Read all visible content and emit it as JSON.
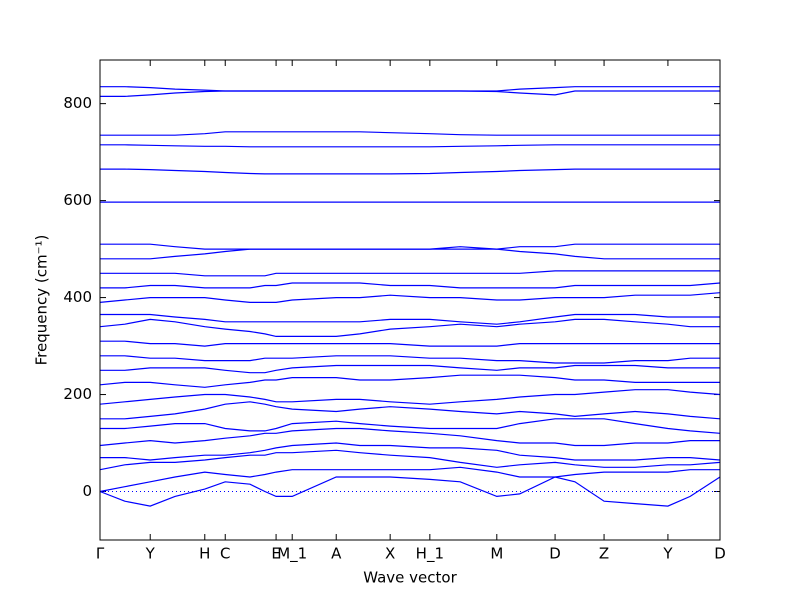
{
  "chart_data": {
    "type": "line",
    "xlabel": "Wave vector",
    "ylabel": "Frequency (cm⁻¹)",
    "color": "#0000ff",
    "xlim": [
      0,
      1
    ],
    "ylim": [
      -100,
      890
    ],
    "yticks": [
      0,
      200,
      400,
      600,
      800
    ],
    "xticks": [
      {
        "value": 0,
        "label": "Γ"
      },
      {
        "value": 0.081,
        "label": "Y"
      },
      {
        "value": 0.169,
        "label": "H"
      },
      {
        "value": 0.202,
        "label": "C"
      },
      {
        "value": 0.284,
        "label": "E"
      },
      {
        "value": 0.31,
        "label": "M_1"
      },
      {
        "value": 0.381,
        "label": "A"
      },
      {
        "value": 0.468,
        "label": "X"
      },
      {
        "value": 0.532,
        "label": "H_1"
      },
      {
        "value": 0.64,
        "label": "M"
      },
      {
        "value": 0.734,
        "label": "D"
      },
      {
        "value": 0.813,
        "label": "Z"
      },
      {
        "value": 0.916,
        "label": "Y"
      },
      {
        "value": 1,
        "label": "D"
      }
    ],
    "reference_line": 0,
    "x": [
      0,
      0.04,
      0.081,
      0.121,
      0.169,
      0.202,
      0.242,
      0.266,
      0.284,
      0.31,
      0.381,
      0.419,
      0.468,
      0.532,
      0.581,
      0.64,
      0.677,
      0.734,
      0.766,
      0.813,
      0.863,
      0.916,
      0.952,
      1
    ],
    "series": [
      {
        "values": [
          0,
          -20,
          -30,
          -10,
          5,
          20,
          15,
          0,
          -10,
          -10,
          30,
          30,
          30,
          25,
          20,
          -10,
          -5,
          30,
          20,
          -20,
          -25,
          -30,
          -10,
          30
        ]
      },
      {
        "values": [
          0,
          10,
          20,
          30,
          40,
          35,
          30,
          35,
          40,
          45,
          45,
          45,
          45,
          45,
          50,
          40,
          30,
          30,
          35,
          40,
          40,
          40,
          45,
          45
        ]
      },
      {
        "values": [
          45,
          55,
          60,
          60,
          65,
          70,
          75,
          75,
          80,
          80,
          85,
          80,
          75,
          70,
          60,
          50,
          55,
          60,
          55,
          50,
          50,
          55,
          55,
          60
        ]
      },
      {
        "values": [
          70,
          70,
          65,
          70,
          75,
          75,
          80,
          85,
          90,
          95,
          100,
          95,
          95,
          90,
          90,
          85,
          75,
          70,
          65,
          65,
          65,
          70,
          70,
          65
        ]
      },
      {
        "values": [
          95,
          100,
          105,
          100,
          105,
          110,
          115,
          120,
          120,
          125,
          130,
          130,
          125,
          120,
          115,
          105,
          100,
          100,
          95,
          95,
          100,
          100,
          105,
          105
        ]
      },
      {
        "values": [
          130,
          130,
          135,
          140,
          140,
          130,
          125,
          125,
          130,
          140,
          145,
          140,
          135,
          130,
          130,
          130,
          140,
          150,
          150,
          150,
          140,
          130,
          125,
          120
        ]
      },
      {
        "values": [
          150,
          150,
          155,
          160,
          170,
          180,
          185,
          180,
          175,
          170,
          165,
          170,
          175,
          170,
          165,
          160,
          165,
          160,
          155,
          160,
          165,
          160,
          155,
          150
        ]
      },
      {
        "values": [
          180,
          185,
          190,
          195,
          200,
          200,
          195,
          190,
          185,
          185,
          190,
          190,
          185,
          180,
          185,
          190,
          195,
          200,
          200,
          205,
          210,
          210,
          205,
          200
        ]
      },
      {
        "values": [
          220,
          225,
          225,
          220,
          215,
          220,
          225,
          230,
          230,
          235,
          235,
          230,
          230,
          235,
          240,
          240,
          240,
          235,
          230,
          230,
          225,
          225,
          225,
          225
        ]
      },
      {
        "values": [
          250,
          250,
          255,
          255,
          255,
          250,
          245,
          245,
          250,
          255,
          260,
          260,
          260,
          260,
          255,
          250,
          255,
          255,
          260,
          260,
          260,
          255,
          255,
          255
        ]
      },
      {
        "values": [
          280,
          280,
          275,
          275,
          270,
          270,
          270,
          275,
          275,
          275,
          280,
          280,
          280,
          275,
          275,
          270,
          270,
          265,
          265,
          265,
          270,
          270,
          275,
          275
        ]
      },
      {
        "values": [
          310,
          310,
          305,
          305,
          300,
          305,
          305,
          305,
          305,
          305,
          305,
          305,
          305,
          300,
          300,
          300,
          305,
          305,
          305,
          305,
          305,
          305,
          305,
          305
        ]
      },
      {
        "values": [
          340,
          345,
          355,
          350,
          340,
          335,
          330,
          325,
          320,
          320,
          320,
          325,
          335,
          340,
          345,
          340,
          345,
          350,
          355,
          355,
          350,
          345,
          340,
          340
        ]
      },
      {
        "values": [
          365,
          365,
          365,
          360,
          355,
          350,
          350,
          350,
          350,
          350,
          350,
          350,
          355,
          355,
          350,
          345,
          350,
          360,
          365,
          365,
          365,
          360,
          360,
          360
        ]
      },
      {
        "values": [
          390,
          395,
          400,
          400,
          400,
          395,
          390,
          390,
          390,
          395,
          400,
          400,
          405,
          400,
          400,
          395,
          395,
          400,
          400,
          400,
          405,
          405,
          405,
          410
        ]
      },
      {
        "values": [
          420,
          420,
          425,
          425,
          420,
          420,
          420,
          425,
          425,
          430,
          430,
          430,
          425,
          425,
          420,
          420,
          420,
          420,
          425,
          425,
          425,
          425,
          425,
          430
        ]
      },
      {
        "values": [
          450,
          450,
          450,
          450,
          445,
          445,
          445,
          445,
          450,
          450,
          450,
          450,
          450,
          450,
          450,
          450,
          450,
          455,
          455,
          455,
          455,
          455,
          455,
          455
        ]
      },
      {
        "values": [
          480,
          480,
          480,
          485,
          490,
          495,
          500,
          500,
          500,
          500,
          500,
          500,
          500,
          500,
          505,
          500,
          495,
          490,
          485,
          480,
          480,
          480,
          480,
          480
        ]
      },
      {
        "values": [
          510,
          510,
          510,
          505,
          500,
          500,
          500,
          500,
          500,
          500,
          500,
          500,
          500,
          500,
          500,
          500,
          505,
          505,
          510,
          510,
          510,
          510,
          510,
          510
        ]
      },
      {
        "values": [
          597,
          597,
          597,
          597,
          597,
          597,
          597,
          597,
          597,
          597,
          597,
          597,
          597,
          597,
          597,
          597,
          597,
          597,
          597,
          597,
          597,
          597,
          597,
          597
        ]
      },
      {
        "values": [
          665,
          665,
          664,
          662,
          660,
          658,
          656,
          655,
          655,
          655,
          655,
          655,
          655,
          656,
          658,
          660,
          662,
          664,
          665,
          665,
          665,
          665,
          665,
          665
        ]
      },
      {
        "values": [
          715,
          715,
          714,
          713,
          712,
          712,
          711,
          711,
          711,
          711,
          711,
          711,
          711,
          711,
          712,
          713,
          714,
          715,
          715,
          715,
          715,
          715,
          715,
          715
        ]
      },
      {
        "values": [
          735,
          735,
          735,
          735,
          738,
          742,
          742,
          742,
          742,
          742,
          742,
          742,
          740,
          738,
          736,
          735,
          735,
          735,
          735,
          735,
          735,
          735,
          735,
          735
        ]
      },
      {
        "values": [
          835,
          835,
          833,
          830,
          828,
          826,
          826,
          826,
          826,
          826,
          826,
          826,
          826,
          826,
          826,
          826,
          830,
          833,
          835,
          835,
          835,
          835,
          835,
          835
        ]
      },
      {
        "values": [
          815,
          815,
          818,
          822,
          825,
          826,
          826,
          826,
          826,
          826,
          826,
          826,
          826,
          826,
          826,
          825,
          822,
          818,
          826,
          826,
          826,
          826,
          826,
          826
        ]
      }
    ]
  }
}
